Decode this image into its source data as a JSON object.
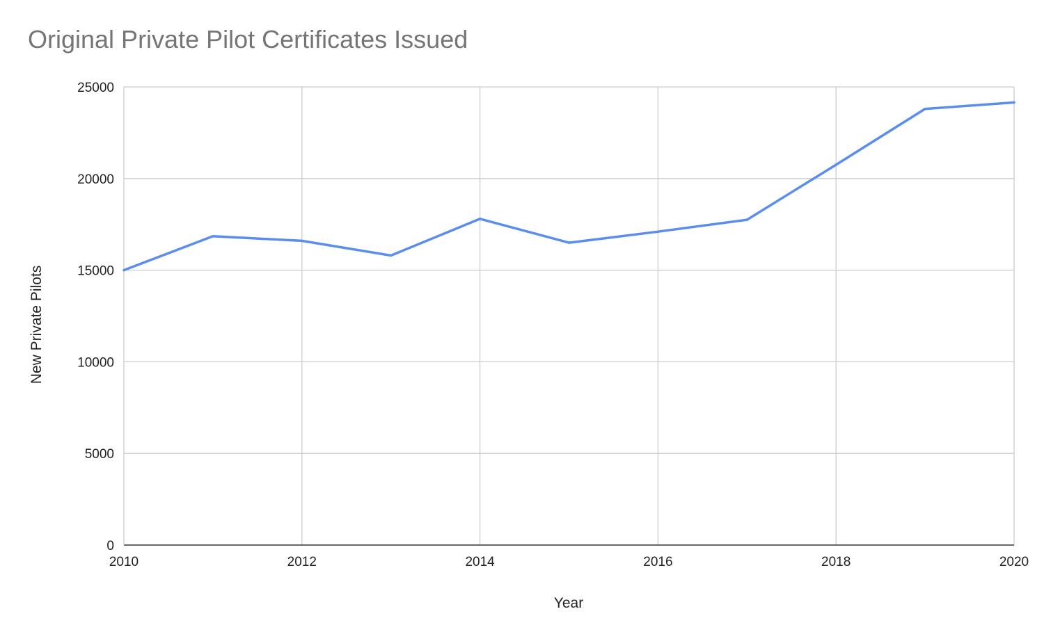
{
  "chart_data": {
    "type": "line",
    "title": "Original Private Pilot Certificates Issued",
    "xlabel": "Year",
    "ylabel": "New Private Pilots",
    "xlim": [
      2010,
      2020
    ],
    "ylim": [
      0,
      25000
    ],
    "x_ticks": [
      "2010",
      "2012",
      "2014",
      "2016",
      "2018",
      "2020"
    ],
    "y_ticks": [
      "0",
      "5000",
      "10000",
      "15000",
      "20000",
      "25000"
    ],
    "grid": true,
    "legend": "none",
    "series": [
      {
        "color": "#5b8def",
        "x": [
          2010,
          2011,
          2012,
          2013,
          2014,
          2015,
          2016,
          2017,
          2018,
          2019,
          2020
        ],
        "y": [
          15000,
          16850,
          16600,
          15800,
          17800,
          16500,
          17100,
          17750,
          20750,
          23800,
          24150
        ]
      }
    ]
  }
}
